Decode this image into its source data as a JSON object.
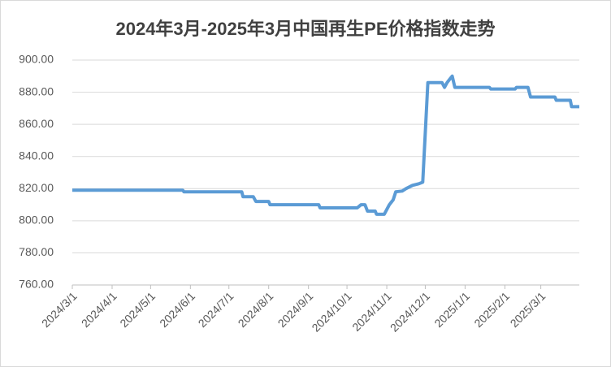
{
  "chart_data": {
    "type": "line",
    "title": "2024年3月-2025年3月中国再生PE价格指数走势",
    "x": [
      "2024/3/1",
      "2024/5/26",
      "2024/5/27",
      "2024/7/11",
      "2024/7/12",
      "2024/7/20",
      "2024/7/22",
      "2024/8/1",
      "2024/8/2",
      "2024/9/9",
      "2024/9/10",
      "2024/10/9",
      "2024/10/12",
      "2024/10/15",
      "2024/10/17",
      "2024/10/23",
      "2024/10/24",
      "2024/10/30",
      "2024/11/3",
      "2024/11/6",
      "2024/11/8",
      "2024/11/13",
      "2024/11/16",
      "2024/11/21",
      "2024/11/26",
      "2024/11/29",
      "2024/12/3",
      "2024/12/14",
      "2024/12/16",
      "2024/12/18",
      "2024/12/20",
      "2024/12/22",
      "2024/12/24",
      "2025/1/20",
      "2025/1/21",
      "2025/2/9",
      "2025/2/10",
      "2025/2/19",
      "2025/2/21",
      "2025/3/12",
      "2025/3/13",
      "2025/3/24",
      "2025/3/25",
      "2025/3/31"
    ],
    "series": [
      {
        "color": "#5b9bd5",
        "values": [
          819,
          819,
          818,
          818,
          815,
          815,
          812,
          812,
          810,
          810,
          808,
          808,
          810,
          810,
          806,
          806,
          804,
          804,
          810,
          813,
          818,
          818.5,
          820,
          822,
          823,
          824,
          886,
          886,
          883,
          886,
          888,
          890,
          883,
          883,
          882,
          882,
          883,
          883,
          877,
          877,
          875,
          875,
          871,
          871
        ]
      }
    ],
    "xlim": [
      "2024/3/1",
      "2025/3/31"
    ],
    "xticks": [
      "2024/3/1",
      "2024/4/1",
      "2024/5/1",
      "2024/6/1",
      "2024/7/1",
      "2024/8/1",
      "2024/9/1",
      "2024/10/1",
      "2024/11/1",
      "2024/12/1",
      "2025/1/1",
      "2025/2/1",
      "2025/3/1"
    ],
    "ylim": [
      760,
      900
    ],
    "yticks": [
      {
        "value": 760,
        "label": "760.00"
      },
      {
        "value": 780,
        "label": "780.00"
      },
      {
        "value": 800,
        "label": "800.00"
      },
      {
        "value": 820,
        "label": "820.00"
      },
      {
        "value": 840,
        "label": "840.00"
      },
      {
        "value": 860,
        "label": "860.00"
      },
      {
        "value": 880,
        "label": "880.00"
      },
      {
        "value": 900,
        "label": "900.00"
      }
    ],
    "grid": true
  }
}
